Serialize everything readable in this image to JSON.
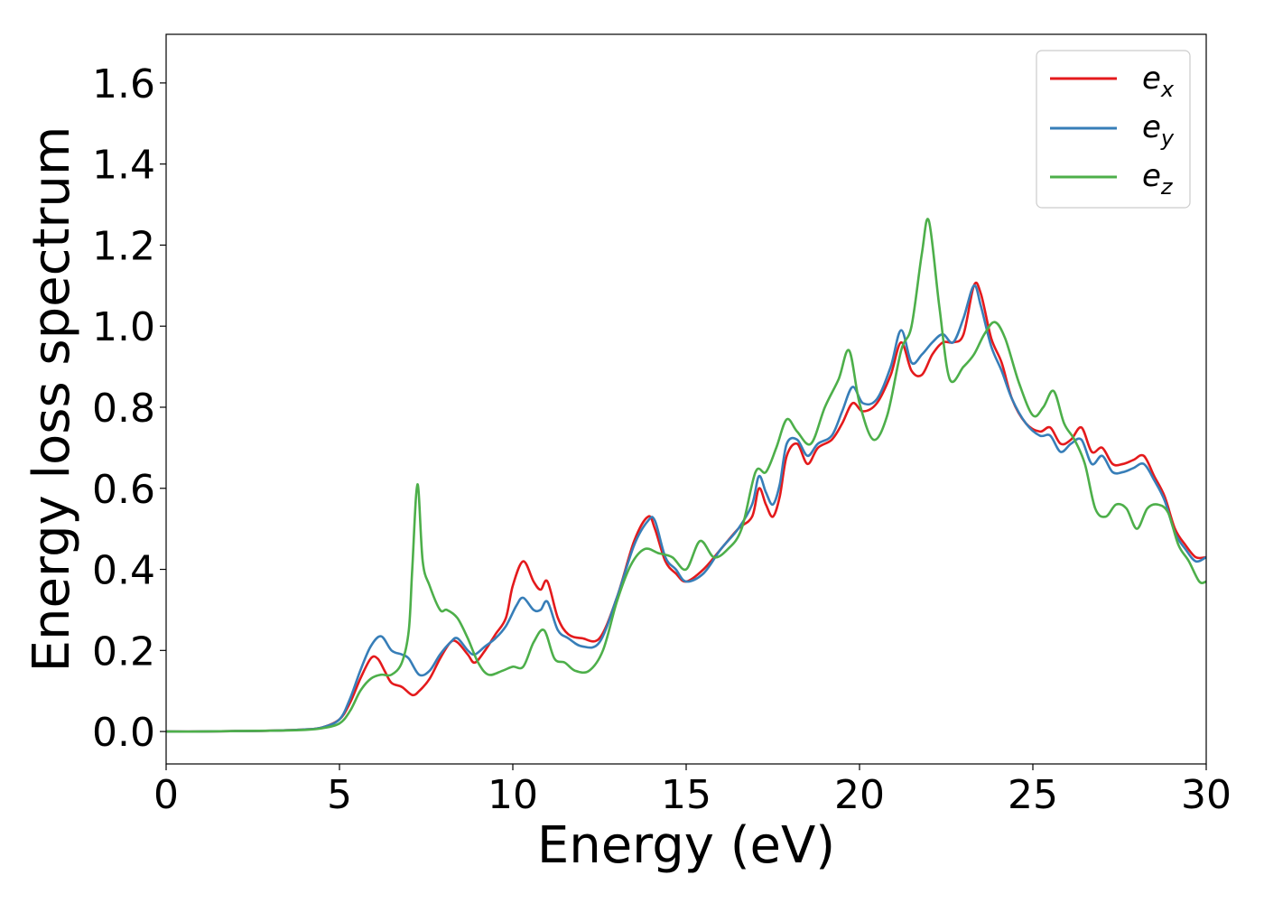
{
  "chart_data": {
    "type": "line",
    "title": "",
    "xlabel": "Energy (eV)",
    "ylabel": "Energy loss spectrum",
    "xlim": [
      0,
      30
    ],
    "ylim": [
      -0.08,
      1.72
    ],
    "xticks": [
      0,
      5,
      10,
      15,
      20,
      25,
      30
    ],
    "xtick_labels": [
      "0",
      "5",
      "10",
      "15",
      "20",
      "25",
      "30"
    ],
    "yticks": [
      0.0,
      0.2,
      0.4,
      0.6,
      0.8,
      1.0,
      1.2,
      1.4,
      1.6
    ],
    "ytick_labels": [
      "0.0",
      "0.2",
      "0.4",
      "0.6",
      "0.8",
      "1.0",
      "1.2",
      "1.4",
      "1.6"
    ],
    "grid": false,
    "legend_position": "top-right",
    "series": [
      {
        "name": "e_x",
        "legend_base": "e",
        "legend_sub": "x",
        "color": "#e41a1c",
        "x": [
          0,
          1,
          2,
          3,
          4,
          4.5,
          5,
          5.3,
          5.6,
          5.9,
          6.1,
          6.3,
          6.5,
          6.8,
          7.1,
          7.3,
          7.6,
          7.9,
          8.2,
          8.4,
          8.7,
          8.9,
          9.2,
          9.5,
          9.8,
          10.0,
          10.3,
          10.6,
          10.8,
          11.0,
          11.3,
          11.6,
          12.0,
          12.5,
          13.0,
          13.5,
          13.9,
          14.1,
          14.4,
          14.7,
          15.0,
          15.5,
          16.0,
          16.5,
          16.9,
          17.1,
          17.3,
          17.5,
          17.7,
          17.9,
          18.2,
          18.5,
          18.8,
          19.2,
          19.5,
          19.8,
          20.1,
          20.5,
          20.9,
          21.2,
          21.5,
          21.8,
          22.1,
          22.4,
          22.7,
          23.0,
          23.3,
          23.5,
          23.8,
          24.1,
          24.4,
          24.8,
          25.2,
          25.5,
          25.8,
          26.1,
          26.4,
          26.7,
          27.0,
          27.3,
          27.6,
          27.9,
          28.2,
          28.5,
          28.8,
          29.1,
          29.4,
          29.7,
          30.0
        ],
        "y": [
          0,
          0,
          0.001,
          0.002,
          0.005,
          0.01,
          0.03,
          0.07,
          0.13,
          0.18,
          0.18,
          0.15,
          0.12,
          0.11,
          0.09,
          0.1,
          0.13,
          0.18,
          0.22,
          0.22,
          0.19,
          0.17,
          0.2,
          0.24,
          0.28,
          0.36,
          0.42,
          0.37,
          0.35,
          0.37,
          0.28,
          0.24,
          0.23,
          0.23,
          0.33,
          0.47,
          0.53,
          0.5,
          0.42,
          0.39,
          0.37,
          0.4,
          0.45,
          0.5,
          0.53,
          0.6,
          0.56,
          0.53,
          0.58,
          0.68,
          0.71,
          0.66,
          0.7,
          0.72,
          0.76,
          0.81,
          0.79,
          0.81,
          0.88,
          0.96,
          0.89,
          0.88,
          0.93,
          0.96,
          0.96,
          0.98,
          1.1,
          1.08,
          0.97,
          0.91,
          0.82,
          0.76,
          0.74,
          0.75,
          0.71,
          0.72,
          0.75,
          0.69,
          0.7,
          0.66,
          0.66,
          0.67,
          0.68,
          0.63,
          0.58,
          0.5,
          0.46,
          0.43,
          0.43
        ]
      },
      {
        "name": "e_y",
        "legend_base": "e",
        "legend_sub": "y",
        "color": "#377eb8",
        "x": [
          0,
          1,
          2,
          3,
          4,
          4.5,
          5,
          5.3,
          5.6,
          5.9,
          6.2,
          6.5,
          6.8,
          7.0,
          7.3,
          7.6,
          7.9,
          8.2,
          8.4,
          8.7,
          8.9,
          9.2,
          9.5,
          9.8,
          10.1,
          10.3,
          10.6,
          10.8,
          11.0,
          11.3,
          11.6,
          12.0,
          12.5,
          13.0,
          13.5,
          13.9,
          14.1,
          14.4,
          14.7,
          15.0,
          15.5,
          16.0,
          16.5,
          16.9,
          17.1,
          17.3,
          17.5,
          17.7,
          17.9,
          18.2,
          18.5,
          18.8,
          19.2,
          19.5,
          19.8,
          20.1,
          20.5,
          20.9,
          21.2,
          21.5,
          21.8,
          22.1,
          22.4,
          22.7,
          23.0,
          23.3,
          23.5,
          23.8,
          24.1,
          24.4,
          24.8,
          25.2,
          25.5,
          25.8,
          26.1,
          26.4,
          26.7,
          27.0,
          27.3,
          27.6,
          27.9,
          28.2,
          28.5,
          28.8,
          29.1,
          29.4,
          29.7,
          30.0
        ],
        "y": [
          0,
          0,
          0.001,
          0.002,
          0.005,
          0.01,
          0.03,
          0.08,
          0.15,
          0.21,
          0.235,
          0.2,
          0.19,
          0.18,
          0.14,
          0.15,
          0.19,
          0.22,
          0.23,
          0.2,
          0.19,
          0.21,
          0.23,
          0.26,
          0.31,
          0.33,
          0.3,
          0.3,
          0.32,
          0.25,
          0.23,
          0.21,
          0.22,
          0.33,
          0.46,
          0.52,
          0.52,
          0.43,
          0.4,
          0.37,
          0.39,
          0.45,
          0.5,
          0.56,
          0.63,
          0.59,
          0.56,
          0.61,
          0.71,
          0.72,
          0.68,
          0.71,
          0.73,
          0.79,
          0.85,
          0.81,
          0.82,
          0.9,
          0.99,
          0.91,
          0.93,
          0.96,
          0.98,
          0.96,
          1.02,
          1.1,
          1.05,
          0.95,
          0.89,
          0.82,
          0.76,
          0.73,
          0.73,
          0.69,
          0.71,
          0.72,
          0.66,
          0.68,
          0.64,
          0.64,
          0.65,
          0.66,
          0.62,
          0.57,
          0.49,
          0.45,
          0.42,
          0.43
        ]
      },
      {
        "name": "e_z",
        "legend_base": "e",
        "legend_sub": "z",
        "color": "#4daf4a",
        "x": [
          0,
          1,
          2,
          3,
          4,
          4.5,
          5,
          5.3,
          5.6,
          5.9,
          6.2,
          6.5,
          6.8,
          7.0,
          7.1,
          7.25,
          7.4,
          7.6,
          7.9,
          8.1,
          8.4,
          8.7,
          9.0,
          9.3,
          9.7,
          10.0,
          10.3,
          10.6,
          10.9,
          11.2,
          11.5,
          11.8,
          12.2,
          12.6,
          13.0,
          13.4,
          13.8,
          14.2,
          14.6,
          15.0,
          15.4,
          15.8,
          16.2,
          16.6,
          17.0,
          17.3,
          17.6,
          17.9,
          18.2,
          18.6,
          19.0,
          19.4,
          19.7,
          20.0,
          20.4,
          20.8,
          21.2,
          21.5,
          21.8,
          22.0,
          22.3,
          22.6,
          23.0,
          23.3,
          23.6,
          23.9,
          24.2,
          24.6,
          25.0,
          25.3,
          25.6,
          25.9,
          26.2,
          26.5,
          26.8,
          27.1,
          27.4,
          27.7,
          28.0,
          28.3,
          28.6,
          28.9,
          29.2,
          29.5,
          29.8,
          30.0
        ],
        "y": [
          0,
          0,
          0.001,
          0.002,
          0.004,
          0.008,
          0.02,
          0.05,
          0.1,
          0.13,
          0.14,
          0.14,
          0.17,
          0.25,
          0.4,
          0.61,
          0.42,
          0.36,
          0.3,
          0.3,
          0.28,
          0.23,
          0.17,
          0.14,
          0.15,
          0.16,
          0.16,
          0.22,
          0.25,
          0.18,
          0.17,
          0.15,
          0.15,
          0.2,
          0.32,
          0.41,
          0.45,
          0.44,
          0.43,
          0.4,
          0.47,
          0.43,
          0.45,
          0.5,
          0.64,
          0.64,
          0.7,
          0.77,
          0.74,
          0.71,
          0.8,
          0.87,
          0.94,
          0.81,
          0.72,
          0.78,
          0.94,
          1.0,
          1.18,
          1.26,
          1.05,
          0.87,
          0.9,
          0.93,
          0.98,
          1.01,
          0.97,
          0.86,
          0.78,
          0.8,
          0.84,
          0.76,
          0.72,
          0.66,
          0.55,
          0.53,
          0.56,
          0.55,
          0.5,
          0.55,
          0.56,
          0.54,
          0.46,
          0.42,
          0.37,
          0.37
        ]
      }
    ]
  }
}
